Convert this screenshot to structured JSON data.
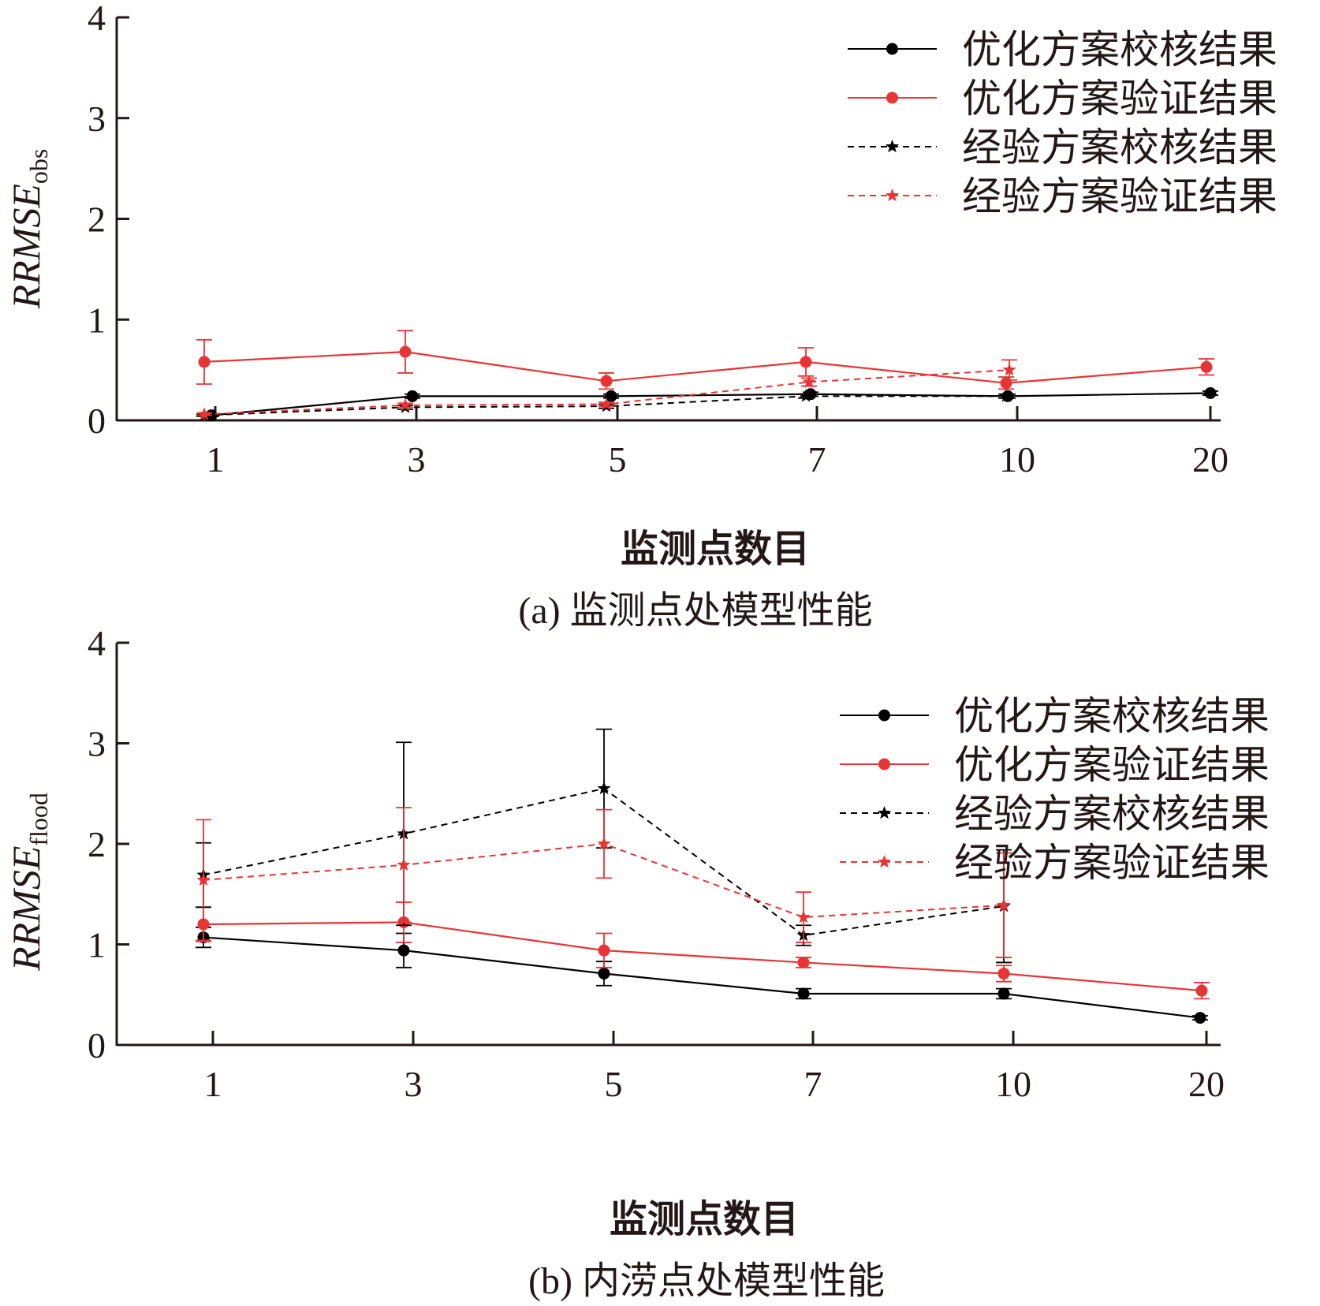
{
  "chart_data": [
    {
      "type": "line",
      "panel": "a",
      "caption": "(a) 监测点处模型性能",
      "xlabel": "监测点数目",
      "ylabel_main": "RRMSE",
      "ylabel_sub": "obs",
      "categories": [
        "1",
        "3",
        "5",
        "7",
        "10",
        "20"
      ],
      "ylim": [
        0,
        4
      ],
      "yticks": [
        "0",
        "1",
        "2",
        "3",
        "4"
      ],
      "legend_position": "top-right",
      "series": [
        {
          "name": "优化方案校核结果",
          "color": "#000000",
          "marker": "circle",
          "dashed": false,
          "values": [
            0.05,
            0.24,
            0.24,
            0.26,
            0.24,
            0.27
          ],
          "errors": [
            0.01,
            0.02,
            0.02,
            0.02,
            0.02,
            0.02
          ]
        },
        {
          "name": "优化方案验证结果",
          "color": "#e83434",
          "marker": "circle",
          "dashed": false,
          "values": [
            0.58,
            0.68,
            0.39,
            0.58,
            0.37,
            0.53
          ],
          "errors": [
            0.22,
            0.21,
            0.08,
            0.14,
            0.06,
            0.08
          ]
        },
        {
          "name": "经验方案校核结果",
          "color": "#000000",
          "marker": "star",
          "dashed": true,
          "values": [
            0.05,
            0.13,
            0.14,
            0.24,
            0.24,
            null
          ],
          "errors": [
            0.01,
            0.02,
            0.02,
            0.02,
            0.02,
            null
          ]
        },
        {
          "name": "经验方案验证结果",
          "color": "#e83434",
          "marker": "star",
          "dashed": true,
          "values": [
            0.06,
            0.15,
            0.16,
            0.38,
            0.5,
            null
          ],
          "errors": [
            0.01,
            0.02,
            0.02,
            0.04,
            0.1,
            null
          ]
        }
      ]
    },
    {
      "type": "line",
      "panel": "b",
      "caption": "(b) 内涝点处模型性能",
      "xlabel": "监测点数目",
      "ylabel_main": "RRMSE",
      "ylabel_sub": "flood",
      "categories": [
        "1",
        "3",
        "5",
        "7",
        "10",
        "20"
      ],
      "ylim": [
        0,
        4
      ],
      "yticks": [
        "0",
        "1",
        "2",
        "3",
        "4"
      ],
      "legend_position": "top-right",
      "series": [
        {
          "name": "优化方案校核结果",
          "color": "#000000",
          "marker": "circle",
          "dashed": false,
          "values": [
            1.07,
            0.94,
            0.71,
            0.51,
            0.51,
            0.27
          ],
          "errors": [
            0.1,
            0.17,
            0.12,
            0.05,
            0.05,
            0.02
          ]
        },
        {
          "name": "优化方案验证结果",
          "color": "#e83434",
          "marker": "circle",
          "dashed": false,
          "values": [
            1.2,
            1.22,
            0.94,
            0.82,
            0.71,
            0.54
          ],
          "errors": [
            0.17,
            0.2,
            0.17,
            0.05,
            0.08,
            0.08
          ]
        },
        {
          "name": "经验方案校核结果",
          "color": "#000000",
          "marker": "star",
          "dashed": true,
          "values": [
            1.69,
            2.1,
            2.55,
            1.09,
            1.38,
            null
          ],
          "errors": [
            0.32,
            0.91,
            0.59,
            0.1,
            0.56,
            null
          ]
        },
        {
          "name": "经验方案验证结果",
          "color": "#e83434",
          "marker": "star",
          "dashed": true,
          "values": [
            1.64,
            1.79,
            2.0,
            1.27,
            1.39,
            null
          ],
          "errors": [
            0.6,
            0.57,
            0.34,
            0.25,
            0.52,
            null
          ]
        }
      ]
    }
  ]
}
